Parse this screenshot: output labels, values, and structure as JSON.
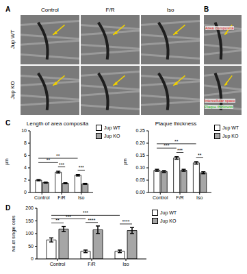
{
  "figure": {
    "panel_A": {
      "letter": "A",
      "columns": [
        "Control",
        "F/R",
        "Iso"
      ],
      "rows": [
        "Jup WT",
        "Jup KO"
      ]
    },
    "panel_B": {
      "letter": "B",
      "labels": [
        {
          "text": "Area composita",
          "color": "#e02020"
        },
        {
          "text": "Intercellular space",
          "color": "#e02020"
        },
        {
          "text": "Plaque thickness",
          "color": "#22c022"
        }
      ]
    }
  },
  "chart_data": [
    {
      "type": "bar",
      "panel": "C",
      "title": "Length of area composita",
      "y_label": "µm",
      "categories": [
        "Control",
        "F/R",
        "Iso"
      ],
      "series": [
        {
          "name": "Jup WT",
          "color": "#ffffff",
          "values": [
            2.0,
            3.3,
            2.8
          ],
          "errors": [
            0.1,
            0.15,
            0.12
          ]
        },
        {
          "name": "Jup KO",
          "color": "#a6a6a6",
          "values": [
            1.6,
            1.5,
            1.4
          ],
          "errors": [
            0.08,
            0.08,
            0.08
          ]
        }
      ],
      "ylim": [
        0,
        10
      ],
      "yticks": [
        0,
        2,
        4,
        6,
        8,
        10
      ],
      "comparisons": [
        {
          "from": [
            "F/R",
            "Jup WT"
          ],
          "to": [
            "F/R",
            "Jup KO"
          ],
          "label": "***"
        },
        {
          "from": [
            "Iso",
            "Jup WT"
          ],
          "to": [
            "Iso",
            "Jup KO"
          ],
          "label": "***"
        },
        {
          "from": [
            "Control",
            "Jup WT"
          ],
          "to": [
            "F/R",
            "Jup WT"
          ],
          "label": "**"
        },
        {
          "from": [
            "Control",
            "Jup WT"
          ],
          "to": [
            "Iso",
            "Jup WT"
          ],
          "label": "**"
        }
      ],
      "legend": "right"
    },
    {
      "type": "bar",
      "title": "Plaque thickness",
      "y_label": "µm",
      "categories": [
        "Control",
        "F/R",
        "Iso"
      ],
      "series": [
        {
          "name": "Jup WT",
          "color": "#ffffff",
          "values": [
            0.09,
            0.14,
            0.12
          ],
          "errors": [
            0.004,
            0.005,
            0.005
          ]
        },
        {
          "name": "Jup KO",
          "color": "#a6a6a6",
          "values": [
            0.085,
            0.09,
            0.08
          ],
          "errors": [
            0.004,
            0.004,
            0.004
          ]
        }
      ],
      "ylim": [
        0,
        0.25
      ],
      "yticks": [
        {
          "value": 0,
          "label": "0.00"
        },
        {
          "value": 0.05,
          "label": "0.05"
        },
        {
          "value": 0.1,
          "label": "0.10"
        },
        {
          "value": 0.15,
          "label": "0.15"
        },
        {
          "value": 0.2,
          "label": "0.20"
        },
        {
          "value": 0.25,
          "label": "0.25"
        }
      ],
      "comparisons": [
        {
          "from": [
            "F/R",
            "Jup WT"
          ],
          "to": [
            "F/R",
            "Jup KO"
          ],
          "label": "***"
        },
        {
          "from": [
            "Iso",
            "Jup WT"
          ],
          "to": [
            "Iso",
            "Jup KO"
          ],
          "label": "**"
        },
        {
          "from": [
            "Control",
            "Jup WT"
          ],
          "to": [
            "F/R",
            "Jup WT"
          ],
          "label": "***"
        },
        {
          "from": [
            "Control",
            "Jup WT"
          ],
          "to": [
            "Iso",
            "Jup WT"
          ],
          "label": "**"
        }
      ],
      "legend": "right"
    },
    {
      "type": "bar",
      "panel": "D",
      "y_label": "No.of single cells",
      "categories": [
        "Control",
        "F/R",
        "Iso"
      ],
      "series": [
        {
          "name": "Jup WT",
          "color": "#ffffff",
          "values": [
            75,
            30,
            30
          ],
          "errors": [
            8,
            5,
            5
          ]
        },
        {
          "name": "Jup KO",
          "color": "#a6a6a6",
          "values": [
            118,
            115,
            112
          ],
          "errors": [
            10,
            15,
            12
          ]
        }
      ],
      "ylim": [
        0,
        200
      ],
      "yticks": [
        0,
        50,
        100,
        150,
        200
      ],
      "comparisons": [
        {
          "from": [
            "Control",
            "Jup WT"
          ],
          "to": [
            "Control",
            "Jup KO"
          ],
          "label": "**"
        },
        {
          "from": [
            "F/R",
            "Jup WT"
          ],
          "to": [
            "F/R",
            "Jup KO"
          ],
          "label": "****"
        },
        {
          "from": [
            "Iso",
            "Jup WT"
          ],
          "to": [
            "Iso",
            "Jup KO"
          ],
          "label": "****"
        },
        {
          "from": [
            "Control",
            "Jup WT"
          ],
          "to": [
            "F/R",
            "Jup WT"
          ],
          "label": "***"
        },
        {
          "from": [
            "Control",
            "Jup WT"
          ],
          "to": [
            "Iso",
            "Jup WT"
          ],
          "label": "***"
        }
      ],
      "legend": "right"
    }
  ]
}
